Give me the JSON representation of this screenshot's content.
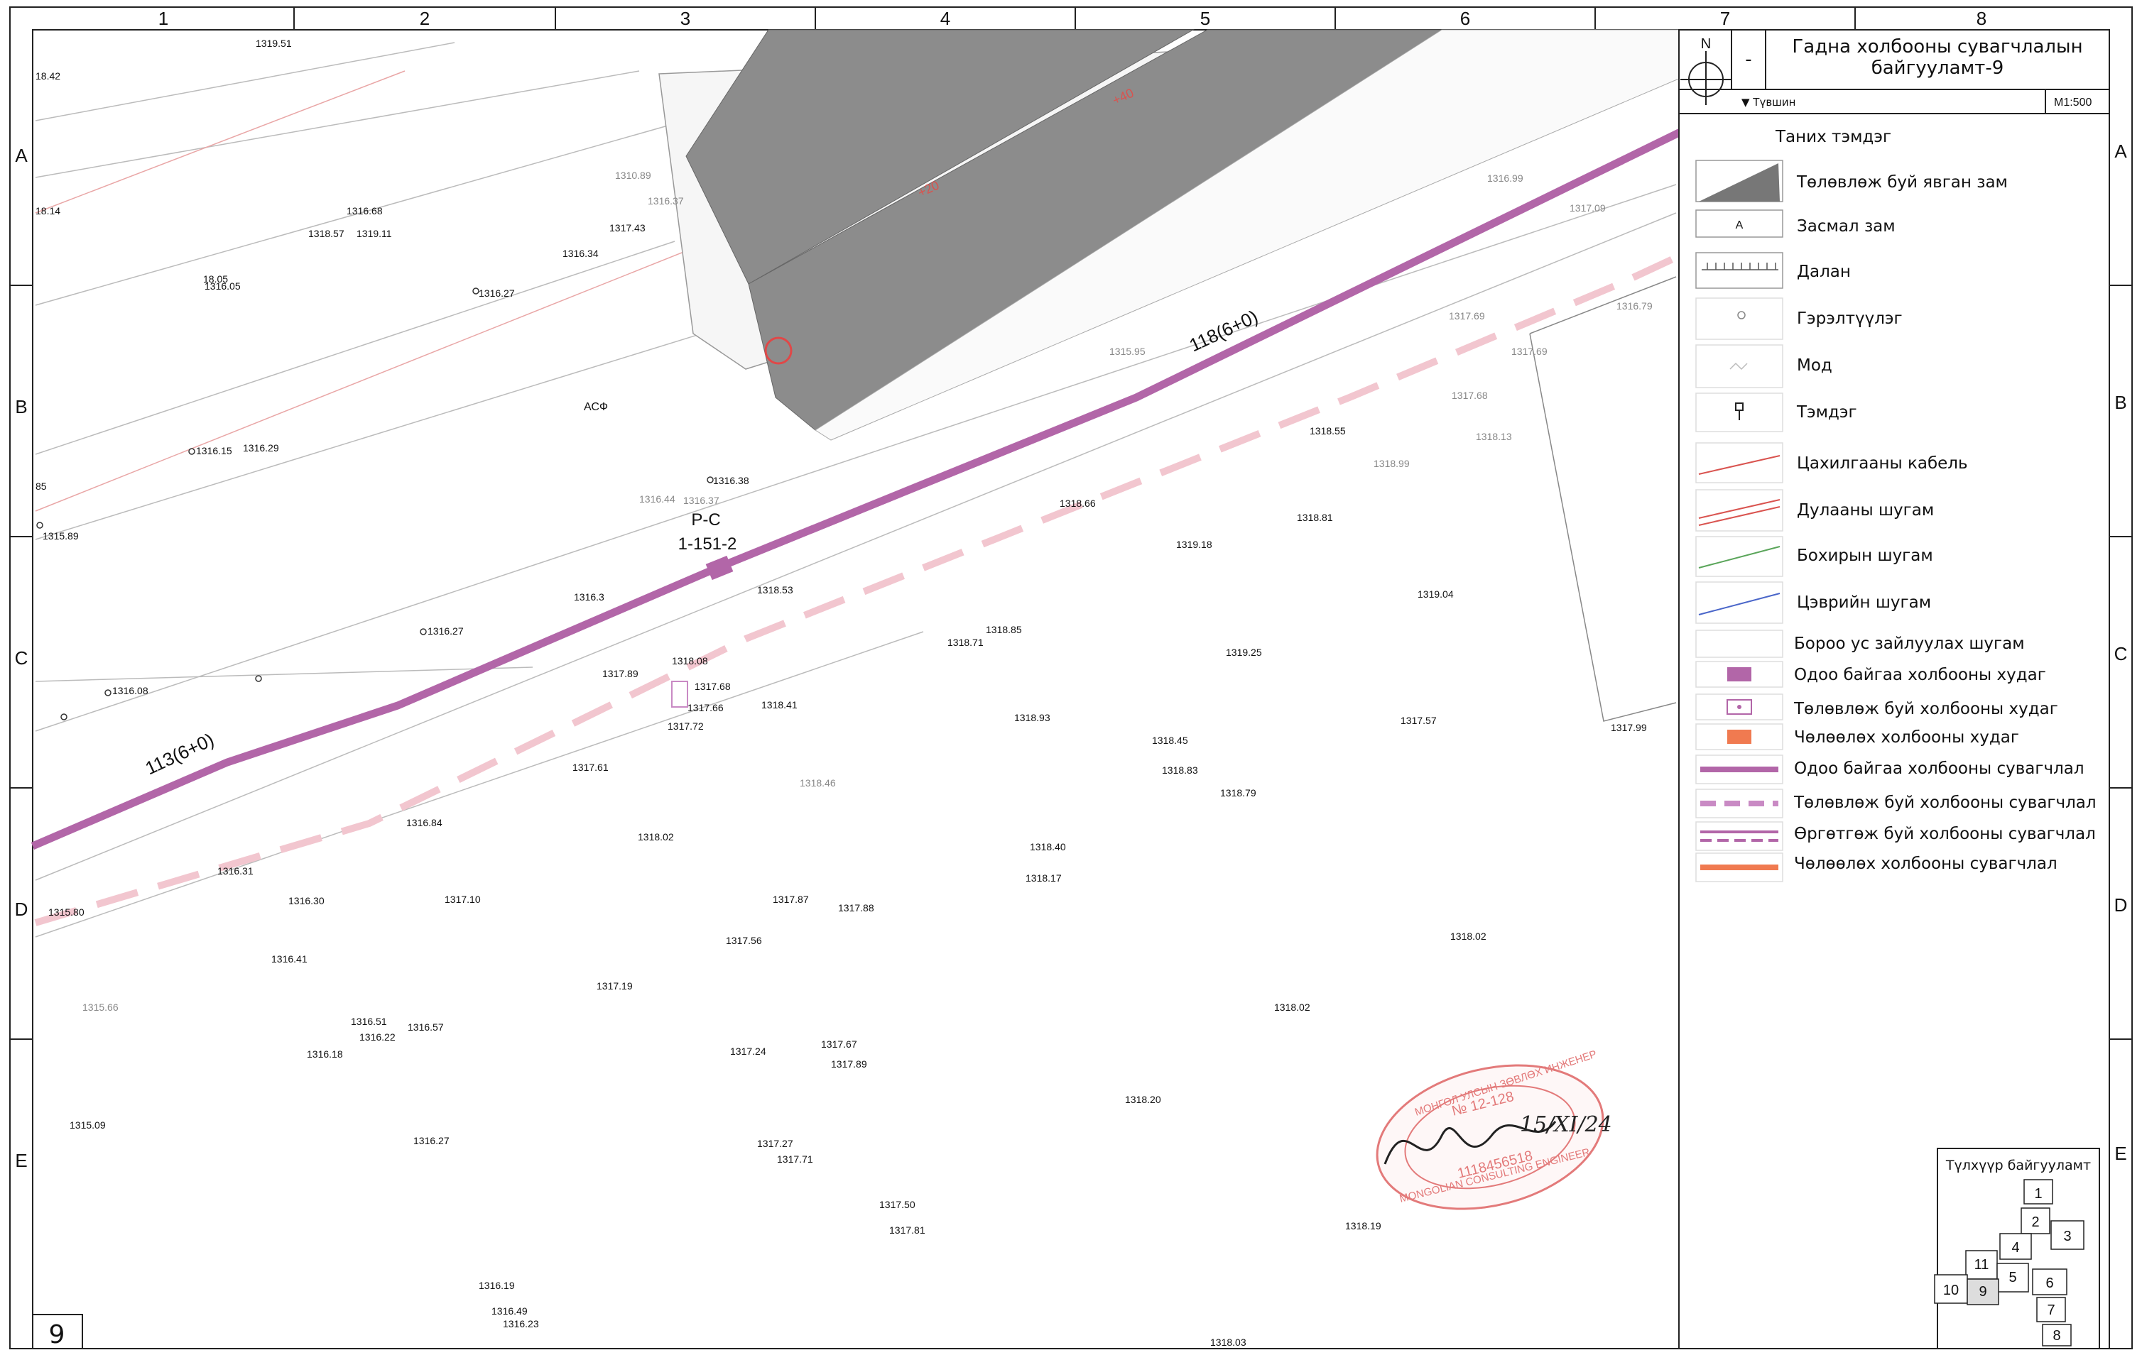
{
  "sheet": {
    "columns": [
      "1",
      "2",
      "3",
      "4",
      "5",
      "6",
      "7",
      "8"
    ],
    "rows": [
      "A",
      "B",
      "C",
      "D",
      "E"
    ],
    "number": "9"
  },
  "title_block": {
    "north": "N",
    "dash": "-",
    "title_line1": "Гадна холбооны сувагчлалын",
    "title_line2": "байгууламт-9",
    "sub_left": "▼ Түвшин",
    "scale": "M1:500"
  },
  "legend": {
    "title": "Таних тэмдэг",
    "items": [
      {
        "label": "Төлөвлөж буй явган зам",
        "icon": "planned-footpath-swatch"
      },
      {
        "label": "Засмал зам",
        "icon": "paved-road-swatch",
        "glyph": "A"
      },
      {
        "label": "Далан",
        "icon": "embankment-symbol"
      },
      {
        "label": "Гэрэлтүүлэг",
        "icon": "lighting-symbol"
      },
      {
        "label": "Мод",
        "icon": "tree-symbol"
      },
      {
        "label": "Тэмдэг",
        "icon": "sign-symbol"
      },
      {
        "label": "Цахилгааны кабель",
        "icon": "electric-cable-line",
        "color": "#d9534f"
      },
      {
        "label": "Дулааны шугам",
        "icon": "heating-line",
        "color": "#d9534f"
      },
      {
        "label": "Бохирын шугам",
        "icon": "sewer-line",
        "color": "#5aa55a"
      },
      {
        "label": "Цэврийн шугам",
        "icon": "water-line",
        "color": "#4a66c9"
      },
      {
        "label": "Бороо ус зайлуулах шугам",
        "icon": "storm-drain-line"
      },
      {
        "label": "Одоо байгаа холбооны худаг",
        "icon": "existing-manhole-symbol",
        "color": "#b266a8"
      },
      {
        "label": "Төлөвлөж буй холбооны худаг",
        "icon": "planned-manhole-symbol",
        "color": "#b266a8"
      },
      {
        "label": "Чөлөөлөх холбооны худаг",
        "icon": "removed-manhole-symbol",
        "color": "#f07a50"
      },
      {
        "label": "Одоо байгаа холбооны сувагчлал",
        "icon": "existing-duct-line",
        "color": "#b266a8"
      },
      {
        "label": "Төлөвлөж буй холбооны сувагчлал",
        "icon": "planned-duct-line",
        "color": "#c98ac4"
      },
      {
        "label": "Өргөтгөж буй холбооны сувагчлал",
        "icon": "expanded-duct-line",
        "color": "#b266a8"
      },
      {
        "label": "Чөлөөлөх холбооны сувагчлал",
        "icon": "removed-duct-line",
        "color": "#f07a50"
      }
    ]
  },
  "key_plan": {
    "title": "Түлхүүр байгууламт",
    "cells": [
      "1",
      "2",
      "3",
      "4",
      "11",
      "5",
      "6",
      "10",
      "9",
      "7",
      "8"
    ]
  },
  "map_labels": {
    "duct_left": "113(6+0)",
    "duct_right": "118(6+0)",
    "manhole_line1": "P-C",
    "manhole_line2": "1-151-2",
    "asphalt": "АСФ",
    "station_20": "+20",
    "station_40": "+40",
    "elevations": [
      "1319.51",
      "18.42",
      "18.14",
      "1316.68",
      "1318.57",
      "1319.11",
      "18.05",
      "1316.05",
      "1316.27",
      "1316.34",
      "1310.89",
      "1316.37",
      "1317.43",
      "1316.99",
      "1317.09",
      "1317.69",
      "1317.69",
      "1316.79",
      "1317.68",
      "1318.13",
      "1315.95",
      "1318.55",
      "1318.99",
      "1318.81",
      "1319.18",
      "1318.66",
      "1316.15",
      "1316.29",
      "1316.38",
      "1316.44",
      "1316.37",
      "85",
      "1315.89",
      "1316.3",
      "1318.53",
      "1319.04",
      "1318.85",
      "1318.71",
      "1319.25",
      "1316.27",
      "1316.08",
      "1318.08",
      "1317.89",
      "1317.68",
      "1317.66",
      "1317.72",
      "1318.41",
      "1318.93",
      "1318.45",
      "1318.83",
      "1318.79",
      "1317.57",
      "1317.99",
      "1317.61",
      "1318.46",
      "1316.84",
      "1318.02",
      "1318.40",
      "1318.17",
      "1316.31",
      "1316.30",
      "1317.10",
      "1317.87",
      "1317.88",
      "1317.56",
      "1318.02",
      "1315.80",
      "1316.41",
      "1317.19",
      "1318.02",
      "1315.66",
      "1316.51",
      "1316.22",
      "1316.57",
      "1316.18",
      "1317.24",
      "1317.67",
      "1317.89",
      "1318.20",
      "1315.09",
      "1316.27",
      "1317.27",
      "1317.71",
      "1317.50",
      "1317.81",
      "1318.19",
      "1316.19",
      "1316.49",
      "1316.23",
      "1318.03"
    ]
  },
  "stamp": {
    "text": "МОНГОЛ УЛСЫН ЗӨВЛӨХ ИНЖЕНЕР",
    "number": "№ 12-128",
    "id": "1118456518",
    "english": "MONGOLIAN CONSULTING ENGINEER",
    "date": "15/XI/24"
  }
}
